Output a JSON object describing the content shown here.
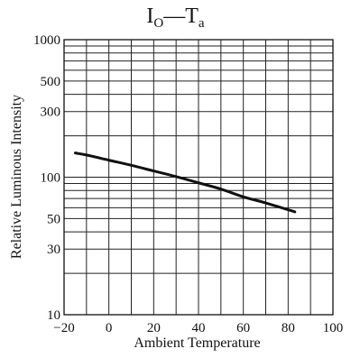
{
  "title": {
    "main": "I",
    "main_sub": "O",
    "dash": "—",
    "second": "T",
    "second_sub": "a"
  },
  "chart_data": {
    "type": "line",
    "title": "IO—Ta",
    "xlabel": "Ambient Temperature",
    "ylabel": "Relative Luminous Intensity",
    "xlim": [
      -20,
      100
    ],
    "ylim": [
      10,
      1000
    ],
    "yscale": "log",
    "grid": true,
    "x_ticks": [
      -20,
      0,
      20,
      40,
      60,
      80,
      100
    ],
    "x_tick_labels": [
      "−20",
      "0",
      "20",
      "40",
      "60",
      "80",
      "100"
    ],
    "y_ticks": [
      10,
      30,
      50,
      100,
      300,
      500,
      1000
    ],
    "y_tick_labels": [
      "10",
      "30",
      "50",
      "100",
      "300",
      "500",
      "1000"
    ],
    "series": [
      {
        "x": [
          -15,
          -10,
          0,
          10,
          20,
          30,
          40,
          50,
          60,
          70,
          80,
          83
        ],
        "y": [
          150,
          145,
          133,
          122,
          111,
          101,
          91,
          82,
          72,
          65,
          58,
          56
        ],
        "color": "#111111"
      }
    ]
  }
}
